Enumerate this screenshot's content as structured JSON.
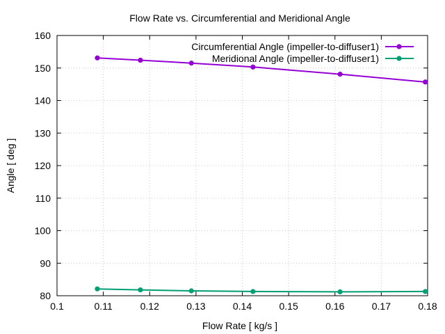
{
  "chart_data": {
    "type": "line",
    "title": "Flow Rate vs. Circumferential and Meridional Angle",
    "xlabel": "Flow Rate [ kg/s ]",
    "ylabel": "Angle [ deg ]",
    "xlim": [
      0.1,
      0.18
    ],
    "ylim": [
      80,
      160
    ],
    "xticks": [
      0.1,
      0.11,
      0.12,
      0.13,
      0.14,
      0.15,
      0.16,
      0.17,
      0.18
    ],
    "xtick_labels": [
      "0.1",
      "0.11",
      "0.12",
      "0.13",
      "0.14",
      "0.15",
      "0.16",
      "0.17",
      "0.18"
    ],
    "yticks": [
      80,
      90,
      100,
      110,
      120,
      130,
      140,
      150,
      160
    ],
    "ytick_labels": [
      "80",
      "90",
      "100",
      "110",
      "120",
      "130",
      "140",
      "150",
      "160"
    ],
    "grid": true,
    "legend_position": "top-right",
    "series": [
      {
        "name": "Circumferential Angle (impeller-to-diffuser1)",
        "color": "#9400d3",
        "x": [
          0.1087,
          0.118,
          0.129,
          0.1423,
          0.1611,
          0.1795
        ],
        "y": [
          153.1,
          152.4,
          151.5,
          150.3,
          148.1,
          145.7
        ]
      },
      {
        "name": "Meridional Angle (impeller-to-diffuser1)",
        "color": "#009e73",
        "x": [
          0.1087,
          0.118,
          0.129,
          0.1423,
          0.1611,
          0.1795
        ],
        "y": [
          82.1,
          81.8,
          81.5,
          81.3,
          81.2,
          81.3
        ]
      }
    ]
  }
}
